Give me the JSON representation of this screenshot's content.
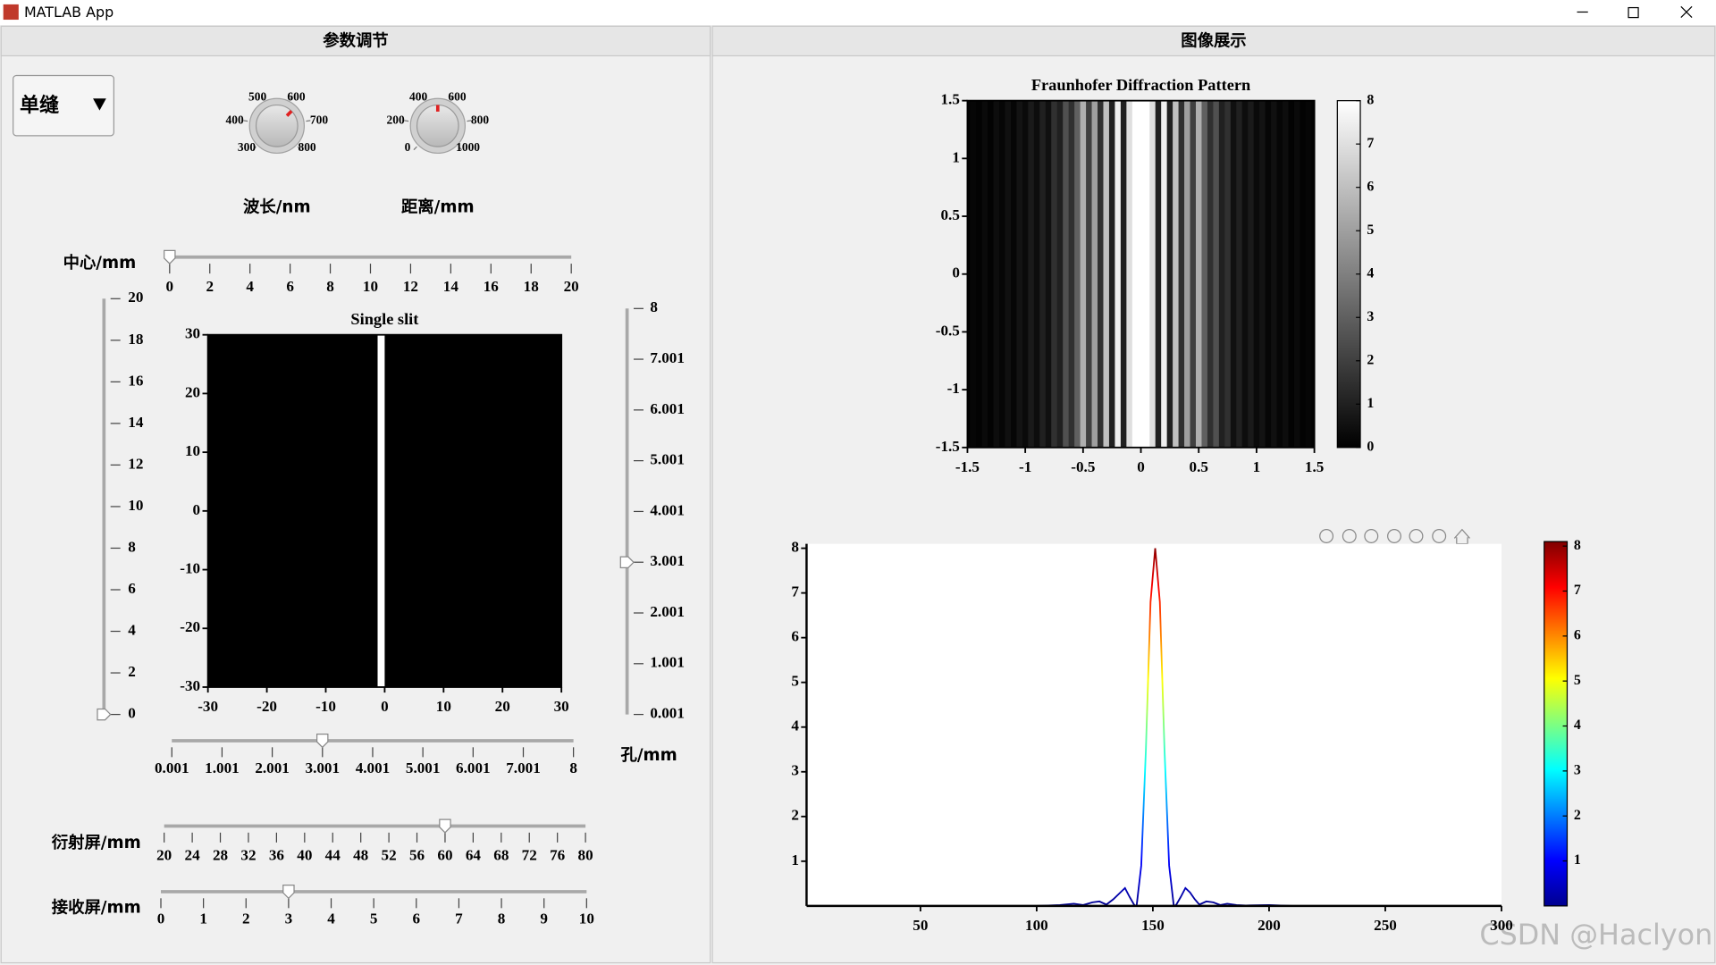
{
  "window": {
    "title": "MATLAB App"
  },
  "left_panel": {
    "title": "参数调节",
    "dropdown": {
      "value": "单缝"
    },
    "knobs": [
      {
        "label": "波长/nm",
        "ticks": [
          300,
          400,
          500,
          600,
          700,
          800
        ],
        "value": 633
      },
      {
        "label": "距离/mm",
        "ticks": [
          0,
          200,
          400,
          600,
          800,
          1000
        ],
        "value": 500
      }
    ],
    "sliders": [
      {
        "label": "中心/mm",
        "ticks": [
          0,
          2,
          4,
          6,
          8,
          10,
          12,
          14,
          16,
          18,
          20
        ],
        "value": 0
      },
      {
        "ticks": [
          0,
          2,
          4,
          6,
          8,
          10,
          12,
          14,
          16,
          18,
          20
        ],
        "value": 0
      },
      {
        "ticks": [
          0.001,
          1.001,
          2.001,
          3.001,
          4.001,
          5.001,
          6.001,
          7.001,
          8
        ],
        "value": 3
      },
      {
        "ticks": [
          0.001,
          1.001,
          2.001,
          3.001,
          4.001,
          5.001,
          6.001,
          7.001,
          8
        ],
        "value": 3
      },
      {
        "label": "衍射屏/mm",
        "ticks": [
          20,
          24,
          28,
          32,
          36,
          40,
          44,
          48,
          52,
          56,
          60,
          64,
          68,
          72,
          76,
          80
        ],
        "value": 60
      },
      {
        "label": "接收屏/mm",
        "ticks": [
          0,
          1,
          2,
          3,
          4,
          5,
          6,
          7,
          8,
          9,
          10
        ],
        "value": 3
      }
    ],
    "hole_label": "孔/mm"
  },
  "right_panel": {
    "title": "图像展示"
  },
  "chart_data": [
    {
      "type": "image",
      "title": "Single slit",
      "xlim": [
        -30,
        30
      ],
      "ylim": [
        -30,
        30
      ],
      "xticks": [
        -30,
        -20,
        -10,
        0,
        10,
        20,
        30
      ],
      "yticks": [
        -30,
        -20,
        -10,
        0,
        10,
        20,
        30
      ],
      "background": "#000000",
      "color": "#ffffff",
      "slit_x": [
        -1.2,
        0
      ]
    },
    {
      "type": "heatmap",
      "title": "Fraunhofer Diffraction Pattern",
      "xlim": [
        -1.5,
        1.5
      ],
      "ylim": [
        -1.5,
        1.5
      ],
      "xticks": [
        -1.5,
        -1,
        -0.5,
        0,
        0.5,
        1,
        1.5
      ],
      "yticks": [
        -1.5,
        -1,
        -0.5,
        0,
        0.5,
        1,
        1.5
      ],
      "x": [
        -1.5,
        -1.45,
        -1.4,
        -1.35,
        -1.3,
        -1.25,
        -1.2,
        -1.15,
        -1.1,
        -1.05,
        -1,
        -0.95,
        -0.9,
        -0.85,
        -0.8,
        -0.75,
        -0.7,
        -0.65,
        -0.6,
        -0.55,
        -0.5,
        -0.45,
        -0.4,
        -0.35,
        -0.3,
        -0.25,
        -0.2,
        -0.15,
        -0.1,
        -0.05,
        0,
        0.05,
        0.1,
        0.15,
        0.2,
        0.25,
        0.3,
        0.35,
        0.4,
        0.45,
        0.5,
        0.55,
        0.6,
        0.65,
        0.7,
        0.75,
        0.8,
        0.85,
        0.9,
        0.95,
        1,
        1.05,
        1.1,
        1.15,
        1.2,
        1.25,
        1.3,
        1.35,
        1.4,
        1.45,
        1.5
      ],
      "values": [
        0.1,
        0.2,
        0.1,
        0.3,
        0.1,
        0.4,
        0.2,
        0.5,
        0.2,
        0.6,
        0.3,
        0.8,
        0.4,
        1,
        0.5,
        1.5,
        1,
        2.5,
        1.5,
        3,
        5.5,
        2,
        5,
        1.5,
        6,
        1,
        7.5,
        1,
        7,
        8,
        8,
        8,
        7,
        1,
        7.5,
        1,
        6,
        1.5,
        5,
        2,
        5.5,
        3,
        1.5,
        2.5,
        1,
        1.5,
        0.5,
        1,
        0.4,
        0.8,
        0.3,
        0.6,
        0.2,
        0.5,
        0.2,
        0.4,
        0.1,
        0.3,
        0.1,
        0.2,
        0.1
      ],
      "colormap": "gray",
      "clim": [
        0,
        8
      ],
      "colorbar_ticks": [
        0,
        1,
        2,
        3,
        4,
        5,
        6,
        7,
        8
      ]
    },
    {
      "type": "line",
      "xlim": [
        1,
        300
      ],
      "ylim": [
        0,
        8.1
      ],
      "xticks": [
        50,
        100,
        150,
        200,
        250,
        300
      ],
      "yticks": [
        1,
        2,
        3,
        4,
        5,
        6,
        7,
        8
      ],
      "x": [
        1,
        100,
        110,
        116,
        120,
        124,
        127,
        130,
        133,
        136,
        138,
        140,
        142,
        143,
        145,
        147,
        149,
        151,
        153,
        155,
        157,
        159,
        160,
        162,
        164,
        166,
        168,
        170,
        173,
        176,
        179,
        182,
        186,
        190,
        200,
        210,
        300
      ],
      "values": [
        0,
        0,
        0.02,
        0.05,
        0.02,
        0.08,
        0.1,
        0.03,
        0.15,
        0.3,
        0.4,
        0.2,
        0.02,
        0,
        0.9,
        3.5,
        6.8,
        8,
        6.8,
        3.5,
        0.9,
        0,
        0.02,
        0.2,
        0.4,
        0.3,
        0.15,
        0.03,
        0.1,
        0.08,
        0.02,
        0.05,
        0.02,
        0.01,
        0.02,
        0,
        0
      ],
      "colormap": "jet",
      "clim": [
        0,
        8.1
      ],
      "colorbar_ticks": [
        1,
        2,
        3,
        4,
        5,
        6,
        7,
        8
      ]
    }
  ],
  "watermark": "CSDN @Haclyon"
}
